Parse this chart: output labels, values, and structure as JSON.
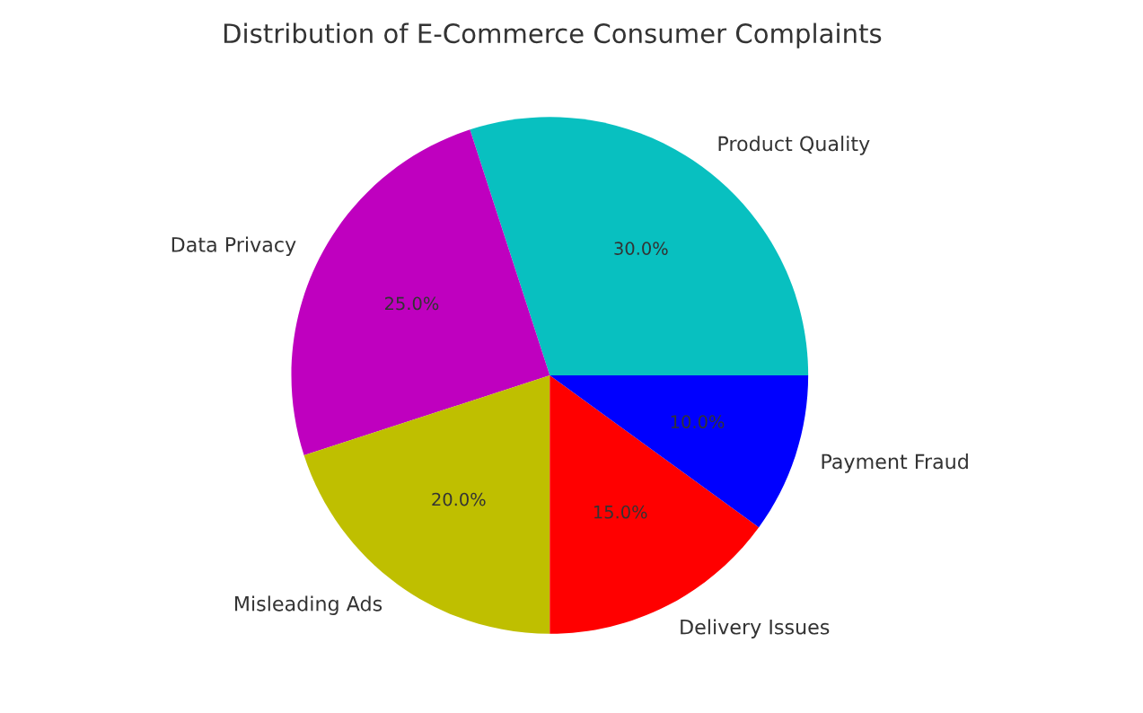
{
  "chart_data": {
    "type": "pie",
    "title": "Distribution of E-Commerce Consumer Complaints",
    "categories": [
      "Product Quality",
      "Data Privacy",
      "Misleading Ads",
      "Delivery Issues",
      "Payment Fraud"
    ],
    "values": [
      30,
      25,
      20,
      15,
      10
    ],
    "colors": [
      "#08c0c0",
      "#bf00bf",
      "#bfbf00",
      "#ff0000",
      "#0000ff"
    ],
    "value_labels": [
      "30.0%",
      "25.0%",
      "20.0%",
      "15.0%",
      "10.0%"
    ]
  }
}
